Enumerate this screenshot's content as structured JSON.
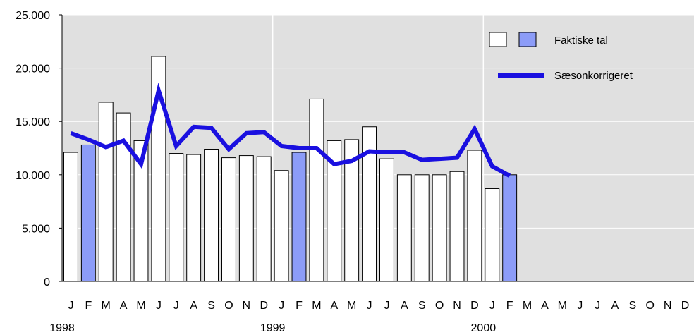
{
  "chart_data": {
    "type": "bar",
    "title": "",
    "ylabel": "",
    "ylim": [
      0,
      25000
    ],
    "yticks": [
      0,
      5000,
      10000,
      15000,
      20000,
      25000
    ],
    "ytick_labels": [
      "0",
      "5.000",
      "10.000",
      "15.000",
      "20.000",
      "25.000"
    ],
    "grid": true,
    "legend_position": "top-right",
    "month_labels": [
      "J",
      "F",
      "M",
      "A",
      "M",
      "J",
      "J",
      "A",
      "S",
      "O",
      "N",
      "D",
      "J",
      "F",
      "M",
      "A",
      "M",
      "J",
      "J",
      "A",
      "S",
      "O",
      "N",
      "D",
      "J",
      "F",
      "M",
      "A",
      "M",
      "J",
      "J",
      "A",
      "S",
      "O",
      "N",
      "D"
    ],
    "year_labels": [
      {
        "label": "1998",
        "start_index": 0
      },
      {
        "label": "1999",
        "start_index": 12
      },
      {
        "label": "2000",
        "start_index": 24
      }
    ],
    "series": [
      {
        "name": "Faktiske tal",
        "type": "bar",
        "values": [
          12100,
          12800,
          16800,
          15800,
          13200,
          21100,
          12000,
          11900,
          12400,
          11600,
          11800,
          11700,
          10400,
          12100,
          17100,
          13200,
          13300,
          14500,
          11500,
          10000,
          10000,
          10000,
          10300,
          12300,
          8700,
          10000
        ],
        "highlight_indices": [
          1,
          13,
          25
        ]
      },
      {
        "name": "Sæsonkorrigeret",
        "type": "line",
        "values": [
          13900,
          13300,
          12600,
          13200,
          11000,
          17900,
          12700,
          14500,
          14400,
          12400,
          13900,
          14000,
          12700,
          12500,
          12500,
          11000,
          11300,
          12200,
          12100,
          12100,
          11400,
          11500,
          11600,
          14300,
          10800,
          9900
        ]
      }
    ],
    "colors": {
      "background": "#e0e0e0",
      "grid": "#ffffff",
      "bar_fill": "#ffffff",
      "bar_highlight": "#8c9cf8",
      "bar_stroke": "#000000",
      "line": "#1a10e0"
    }
  }
}
